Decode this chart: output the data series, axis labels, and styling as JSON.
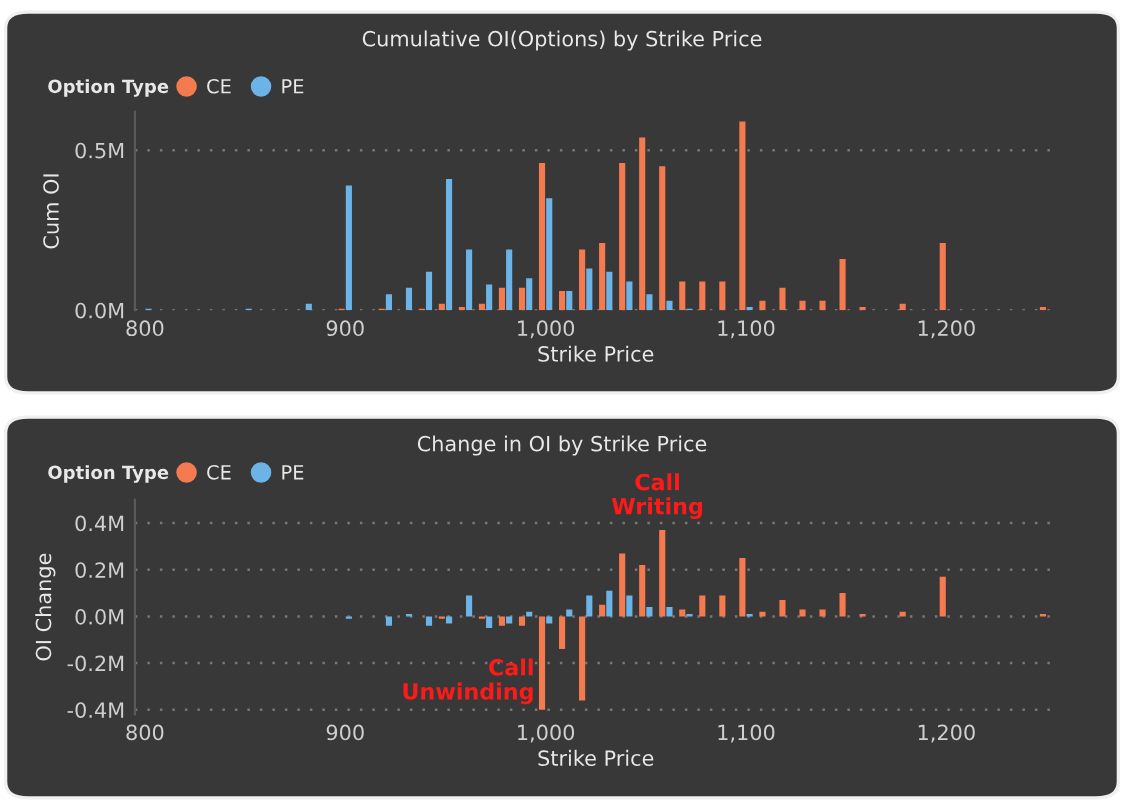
{
  "chart_data": [
    {
      "type": "bar",
      "title": "Cumulative OI(Options) by Strike Price",
      "xlabel": "Strike Price",
      "ylabel": "Cum OI",
      "legend_title": "Option Type",
      "legend": "top left",
      "grid": "y",
      "xlim": [
        795,
        1255
      ],
      "xticks": [
        {
          "value": 800,
          "label": "800"
        },
        {
          "value": 900,
          "label": "900"
        },
        {
          "value": 1000,
          "label": "1,000"
        },
        {
          "value": 1100,
          "label": "1,100"
        },
        {
          "value": 1200,
          "label": "1,200"
        }
      ],
      "ylim": [
        0,
        0.62
      ],
      "yticks": [
        {
          "value": 0,
          "label": "0.0M"
        },
        {
          "value": 0.5,
          "label": "0.5M"
        }
      ],
      "series": [
        {
          "name": "CE",
          "color": "#f47a50",
          "x": [
            900,
            920,
            940,
            950,
            960,
            970,
            980,
            990,
            1000,
            1010,
            1020,
            1030,
            1040,
            1050,
            1060,
            1070,
            1080,
            1090,
            1100,
            1110,
            1120,
            1130,
            1140,
            1150,
            1160,
            1180,
            1200,
            1250
          ],
          "values": [
            0.005,
            0.005,
            0.005,
            0.02,
            0.01,
            0.02,
            0.07,
            0.07,
            0.46,
            0.06,
            0.19,
            0.21,
            0.46,
            0.54,
            0.45,
            0.09,
            0.09,
            0.09,
            0.59,
            0.03,
            0.07,
            0.03,
            0.03,
            0.16,
            0.01,
            0.02,
            0.21,
            0.01
          ]
        },
        {
          "name": "PE",
          "color": "#6cb4e8",
          "x": [
            800,
            850,
            880,
            900,
            920,
            930,
            940,
            950,
            960,
            970,
            980,
            990,
            1000,
            1010,
            1020,
            1030,
            1040,
            1050,
            1060,
            1070,
            1100
          ],
          "values": [
            0.005,
            0.005,
            0.02,
            0.39,
            0.05,
            0.07,
            0.12,
            0.41,
            0.19,
            0.08,
            0.19,
            0.1,
            0.35,
            0.06,
            0.13,
            0.12,
            0.09,
            0.05,
            0.03,
            0.005,
            0.01
          ]
        }
      ]
    },
    {
      "type": "bar",
      "title": "Change in OI by Strike Price",
      "xlabel": "Strike Price",
      "ylabel": "OI Change",
      "legend_title": "Option Type",
      "legend": "top left",
      "grid": "y",
      "xlim": [
        795,
        1255
      ],
      "xticks": [
        {
          "value": 800,
          "label": "800"
        },
        {
          "value": 900,
          "label": "900"
        },
        {
          "value": 1000,
          "label": "1,000"
        },
        {
          "value": 1100,
          "label": "1,100"
        },
        {
          "value": 1200,
          "label": "1,200"
        }
      ],
      "ylim": [
        -0.42,
        0.5
      ],
      "yticks": [
        {
          "value": -0.4,
          "label": "-0.4M"
        },
        {
          "value": -0.2,
          "label": "-0.2M"
        },
        {
          "value": 0,
          "label": "0.0M"
        },
        {
          "value": 0.2,
          "label": "0.2M"
        },
        {
          "value": 0.4,
          "label": "0.4M"
        }
      ],
      "annotations": [
        {
          "text": "Call\nWriting",
          "x": 1060,
          "y": 0.37
        },
        {
          "text": "Call\nUnwinding",
          "x": 1000,
          "y": -0.4
        }
      ],
      "series": [
        {
          "name": "CE",
          "color": "#f47a50",
          "x": [
            950,
            970,
            980,
            990,
            1000,
            1010,
            1020,
            1030,
            1040,
            1050,
            1060,
            1070,
            1080,
            1090,
            1100,
            1110,
            1120,
            1130,
            1140,
            1150,
            1160,
            1180,
            1200,
            1250
          ],
          "values": [
            -0.01,
            -0.01,
            -0.04,
            -0.04,
            -0.4,
            -0.14,
            -0.36,
            0.05,
            0.27,
            0.22,
            0.37,
            0.03,
            0.09,
            0.09,
            0.25,
            0.02,
            0.07,
            0.03,
            0.03,
            0.1,
            0.01,
            0.02,
            0.17,
            0.01
          ]
        },
        {
          "name": "PE",
          "color": "#6cb4e8",
          "x": [
            900,
            920,
            930,
            940,
            950,
            960,
            970,
            980,
            990,
            1000,
            1010,
            1020,
            1030,
            1040,
            1050,
            1060,
            1070,
            1100
          ],
          "values": [
            -0.01,
            -0.04,
            0.01,
            -0.04,
            -0.03,
            0.09,
            -0.05,
            -0.03,
            0.02,
            -0.03,
            0.03,
            0.09,
            0.11,
            0.09,
            0.04,
            0.04,
            0.01,
            0.01
          ]
        }
      ]
    }
  ]
}
